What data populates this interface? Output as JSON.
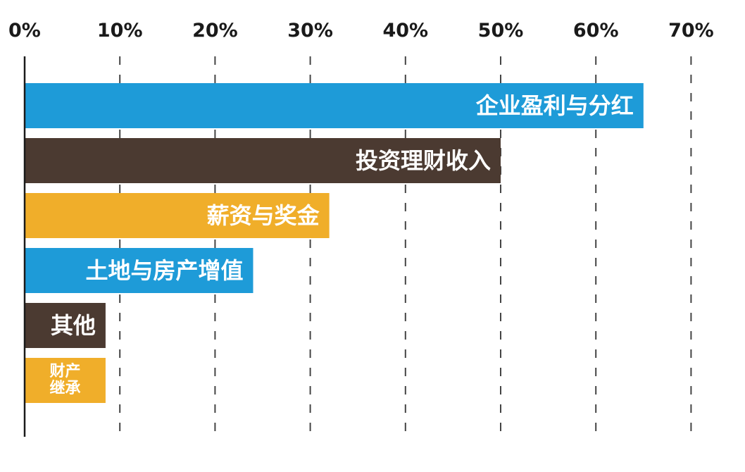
{
  "chart_data": {
    "type": "bar",
    "orientation": "horizontal",
    "xlim": [
      0,
      70
    ],
    "x_ticks": [
      0,
      10,
      20,
      30,
      40,
      50,
      60,
      70
    ],
    "x_tick_labels": [
      "0%",
      "10%",
      "20%",
      "30%",
      "40%",
      "50%",
      "60%",
      "70%"
    ],
    "x_tick_position": "top",
    "grid": true,
    "grid_style": "dashed vertical",
    "value_unit": "%",
    "categories": [
      "企业盈利与分红",
      "投资理财收入",
      "薪资与奖金",
      "土地与房产增值",
      "其他",
      "财产继承"
    ],
    "values": [
      65,
      50,
      32,
      24,
      8.5,
      8.5
    ],
    "category_label_lines": [
      [
        "企业盈利与分红"
      ],
      [
        "投资理财收入"
      ],
      [
        "薪资与奖金"
      ],
      [
        "土地与房产增值"
      ],
      [
        "其他"
      ],
      [
        "财产",
        "继承"
      ]
    ],
    "colors": {
      "blue": "#1e9bd8",
      "brown": "#4b3a31",
      "gold": "#f0ae2a"
    },
    "bar_colors": [
      "#1e9bd8",
      "#4b3a31",
      "#f0ae2a",
      "#1e9bd8",
      "#4b3a31",
      "#f0ae2a"
    ],
    "label_placement": "inside-end"
  }
}
